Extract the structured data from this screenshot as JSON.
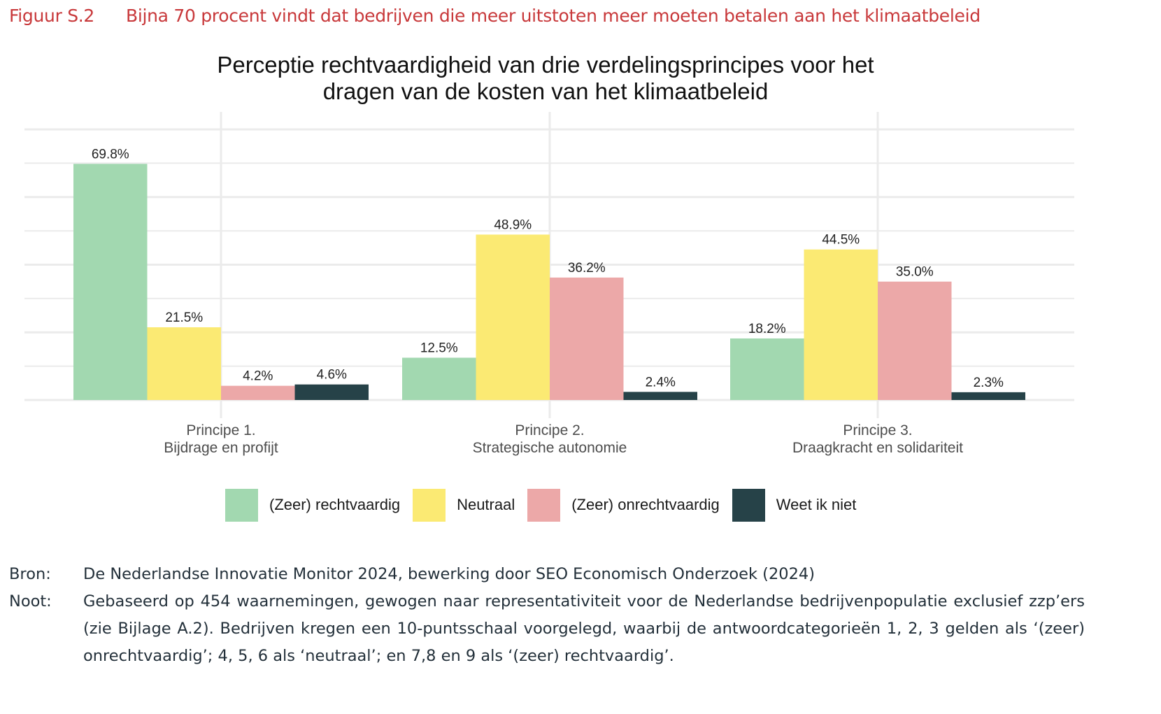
{
  "figure": {
    "number": "Figuur S.2",
    "caption": "Bijna 70 procent vindt dat bedrijven die meer uitstoten meer moeten betalen aan het klimaatbeleid"
  },
  "chart_data": {
    "type": "bar",
    "title": "Perceptie rechtvaardigheid van drie verdelingsprincipes voor het dragen van de kosten van het klimaatbeleid",
    "title_lines": [
      "Perceptie rechtvaardigheid van drie verdelingsprincipes voor het",
      "dragen van de kosten van het klimaatbeleid"
    ],
    "xlabel": "",
    "ylabel": "",
    "ylim": [
      0,
      80
    ],
    "grid": true,
    "y_tick_labels_shown": false,
    "legend_position": "bottom",
    "categories": [
      [
        "Principe 1.",
        "Bijdrage en profijt"
      ],
      [
        "Principe 2.",
        "Strategische autonomie"
      ],
      [
        "Principe 3.",
        "Draagkracht en solidariteit"
      ]
    ],
    "series": [
      {
        "name": "(Zeer) rechtvaardig",
        "color": "#a2d8b0",
        "values": [
          69.8,
          12.5,
          18.2
        ],
        "labels": [
          "69.8%",
          "12.5%",
          "18.2%"
        ]
      },
      {
        "name": "Neutraal",
        "color": "#fbea73",
        "values": [
          21.5,
          48.9,
          44.5
        ],
        "labels": [
          "21.5%",
          "48.9%",
          "44.5%"
        ]
      },
      {
        "name": "(Zeer) onrechtvaardig",
        "color": "#eca8a8",
        "values": [
          4.2,
          36.2,
          35.0
        ],
        "labels": [
          "4.2%",
          "36.2%",
          "35.0%"
        ]
      },
      {
        "name": "Weet ik niet",
        "color": "#264248",
        "values": [
          4.6,
          2.4,
          2.3
        ],
        "labels": [
          "4.6%",
          "2.4%",
          "2.3%"
        ]
      }
    ]
  },
  "notes": {
    "source_label": "Bron:",
    "source_text": "De Nederlandse Innovatie Monitor 2024, bewerking door SEO Economisch Onderzoek (2024)",
    "note_label": "Noot:",
    "note_text": "Gebaseerd op 454 waarnemingen, gewogen naar representativiteit voor de Nederlandse bedrijvenpopulatie exclusief zzp’ers (zie Bijlage A.2). Bedrijven kregen een 10-puntsschaal voorgelegd, waarbij de antwoordcategorieën 1, 2, 3 gelden als ‘(zeer) onrechtvaardig’; 4, 5, 6 als ‘neutraal’; en 7,8 en 9 als ‘(zeer) rechtvaardig’."
  }
}
